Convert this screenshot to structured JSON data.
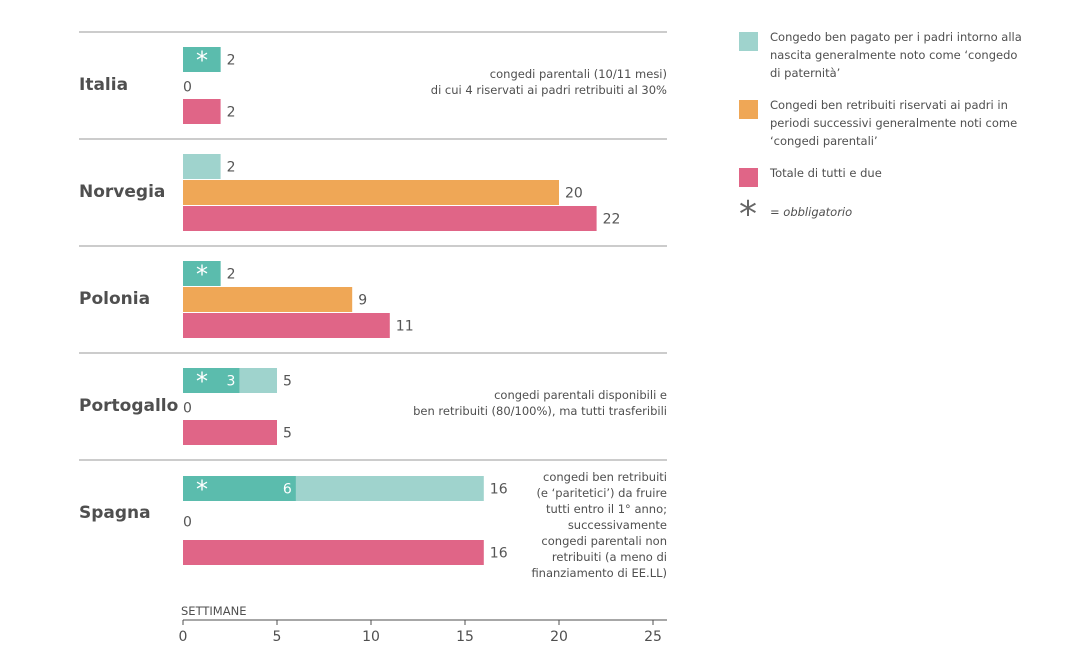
{
  "chart_data": {
    "type": "bar",
    "orientation": "horizontal",
    "xlabel": "SETTIMANE",
    "xlim": [
      0,
      25
    ],
    "xticks": [
      0,
      5,
      10,
      15,
      20,
      25
    ],
    "colors": {
      "paternity_light": "#9fd3cd",
      "paternity_mandatory": "#5bbcad",
      "parental": "#efa756",
      "total": "#e06587"
    },
    "groups": [
      {
        "country": "Italia",
        "rows": [
          {
            "series": "paternity",
            "value": 2,
            "mandatory": 2,
            "label": "2"
          },
          {
            "series": "parental",
            "value": 0,
            "label": "0"
          },
          {
            "series": "total",
            "value": 2,
            "label": "2"
          }
        ],
        "note": [
          "congedi parentali (10/11 mesi)",
          "di cui 4 riservati ai padri retribuiti al 30%"
        ]
      },
      {
        "country": "Norvegia",
        "rows": [
          {
            "series": "paternity",
            "value": 2,
            "mandatory": 0,
            "label": "2"
          },
          {
            "series": "parental",
            "value": 20,
            "label": "20"
          },
          {
            "series": "total",
            "value": 22,
            "label": "22"
          }
        ],
        "note": []
      },
      {
        "country": "Polonia",
        "rows": [
          {
            "series": "paternity",
            "value": 2,
            "mandatory": 2,
            "label": "2"
          },
          {
            "series": "parental",
            "value": 9,
            "label": "9"
          },
          {
            "series": "total",
            "value": 11,
            "label": "11"
          }
        ],
        "note": []
      },
      {
        "country": "Portogallo",
        "rows": [
          {
            "series": "paternity",
            "value": 5,
            "mandatory": 3,
            "mandatory_label": "3",
            "label": "5"
          },
          {
            "series": "parental",
            "value": 0,
            "label": "0"
          },
          {
            "series": "total",
            "value": 5,
            "label": "5"
          }
        ],
        "note": [
          "congedi parentali disponibili e",
          "ben retribuiti (80/100%), ma tutti trasferibili"
        ]
      },
      {
        "country": "Spagna",
        "rows": [
          {
            "series": "paternity",
            "value": 16,
            "mandatory": 6,
            "mandatory_label": "6",
            "label": "16"
          },
          {
            "series": "parental",
            "value": 0,
            "label": "0"
          },
          {
            "series": "total",
            "value": 16,
            "label": "16"
          }
        ],
        "note": [
          "congedi ben retribuiti",
          "(e ‘paritetici’) da fruire",
          "tutti entro il 1° anno;",
          "successivamente",
          "congedi parentali non",
          "retribuiti (a meno di",
          "finanziamento di EE.LL)"
        ]
      }
    ],
    "legend": [
      {
        "series": "paternity",
        "color": "#9fd3cd",
        "lines": [
          "Congedo ben pagato per i padri intorno alla",
          "nascita  generalmente noto come ‘congedo",
          "di paternità’"
        ]
      },
      {
        "series": "parental",
        "color": "#efa756",
        "lines": [
          "Congedi ben retribuiti riservati  ai padri in",
          "periodi successivi  generalmente noti come",
          "‘congedi parentali’"
        ]
      },
      {
        "series": "total",
        "color": "#e06587",
        "lines": [
          "Totale di tutti e due"
        ]
      }
    ],
    "mandatory_note": "= obbligatorio",
    "mandatory_symbol": "*"
  }
}
